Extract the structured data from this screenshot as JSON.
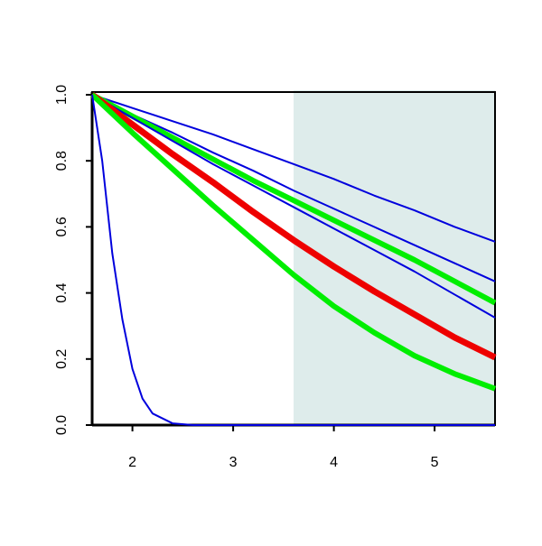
{
  "chart_data": {
    "type": "line",
    "x": [
      1.6,
      2.0,
      2.4,
      2.8,
      3.2,
      3.6,
      4.0,
      4.4,
      4.8,
      5.2,
      5.6
    ],
    "series": [
      {
        "color": "#0000dd",
        "width": 2,
        "values": [
          1,
          0.96,
          0.92,
          0.88,
          0.835,
          0.79,
          0.745,
          0.695,
          0.65,
          0.6,
          0.555
        ]
      },
      {
        "color": "#0000dd",
        "width": 2,
        "values": [
          1,
          0.94,
          0.885,
          0.825,
          0.77,
          0.71,
          0.655,
          0.6,
          0.545,
          0.49,
          0.435
        ]
      },
      {
        "color": "#00ee00",
        "width": 6,
        "values": [
          1,
          0.935,
          0.87,
          0.805,
          0.74,
          0.68,
          0.62,
          0.56,
          0.5,
          0.435,
          0.37
        ]
      },
      {
        "color": "#0000dd",
        "width": 2,
        "values": [
          1,
          0.93,
          0.86,
          0.79,
          0.725,
          0.66,
          0.595,
          0.53,
          0.465,
          0.395,
          0.325
        ]
      },
      {
        "color": "#ee0000",
        "width": 7,
        "values": [
          1,
          0.91,
          0.82,
          0.735,
          0.645,
          0.56,
          0.48,
          0.405,
          0.335,
          0.265,
          0.205
        ]
      },
      {
        "color": "#00ee00",
        "width": 6,
        "values": [
          1,
          0.885,
          0.775,
          0.665,
          0.56,
          0.455,
          0.36,
          0.28,
          0.21,
          0.155,
          0.11
        ]
      },
      {
        "color": "#0000dd",
        "width": 2,
        "x": [
          1.6,
          1.7,
          1.8,
          1.9,
          2.0,
          2.1,
          2.2,
          2.4,
          2.6,
          3,
          4,
          5,
          5.6
        ],
        "values": [
          1,
          0.8,
          0.52,
          0.32,
          0.17,
          0.08,
          0.035,
          0.005,
          0,
          0,
          0,
          0,
          0
        ]
      }
    ],
    "shaded_region": {
      "xmin": 3.6,
      "xmax": 5.6,
      "color": "#deeceb"
    },
    "xlim": [
      1.6,
      5.6
    ],
    "ylim": [
      0,
      1
    ],
    "xticks": [
      2,
      3,
      4,
      5
    ],
    "yticks": [
      {
        "value": 0,
        "label": "0.0"
      },
      0.2,
      0.4,
      0.6,
      0.8,
      {
        "value": 1,
        "label": "1.0"
      }
    ]
  }
}
